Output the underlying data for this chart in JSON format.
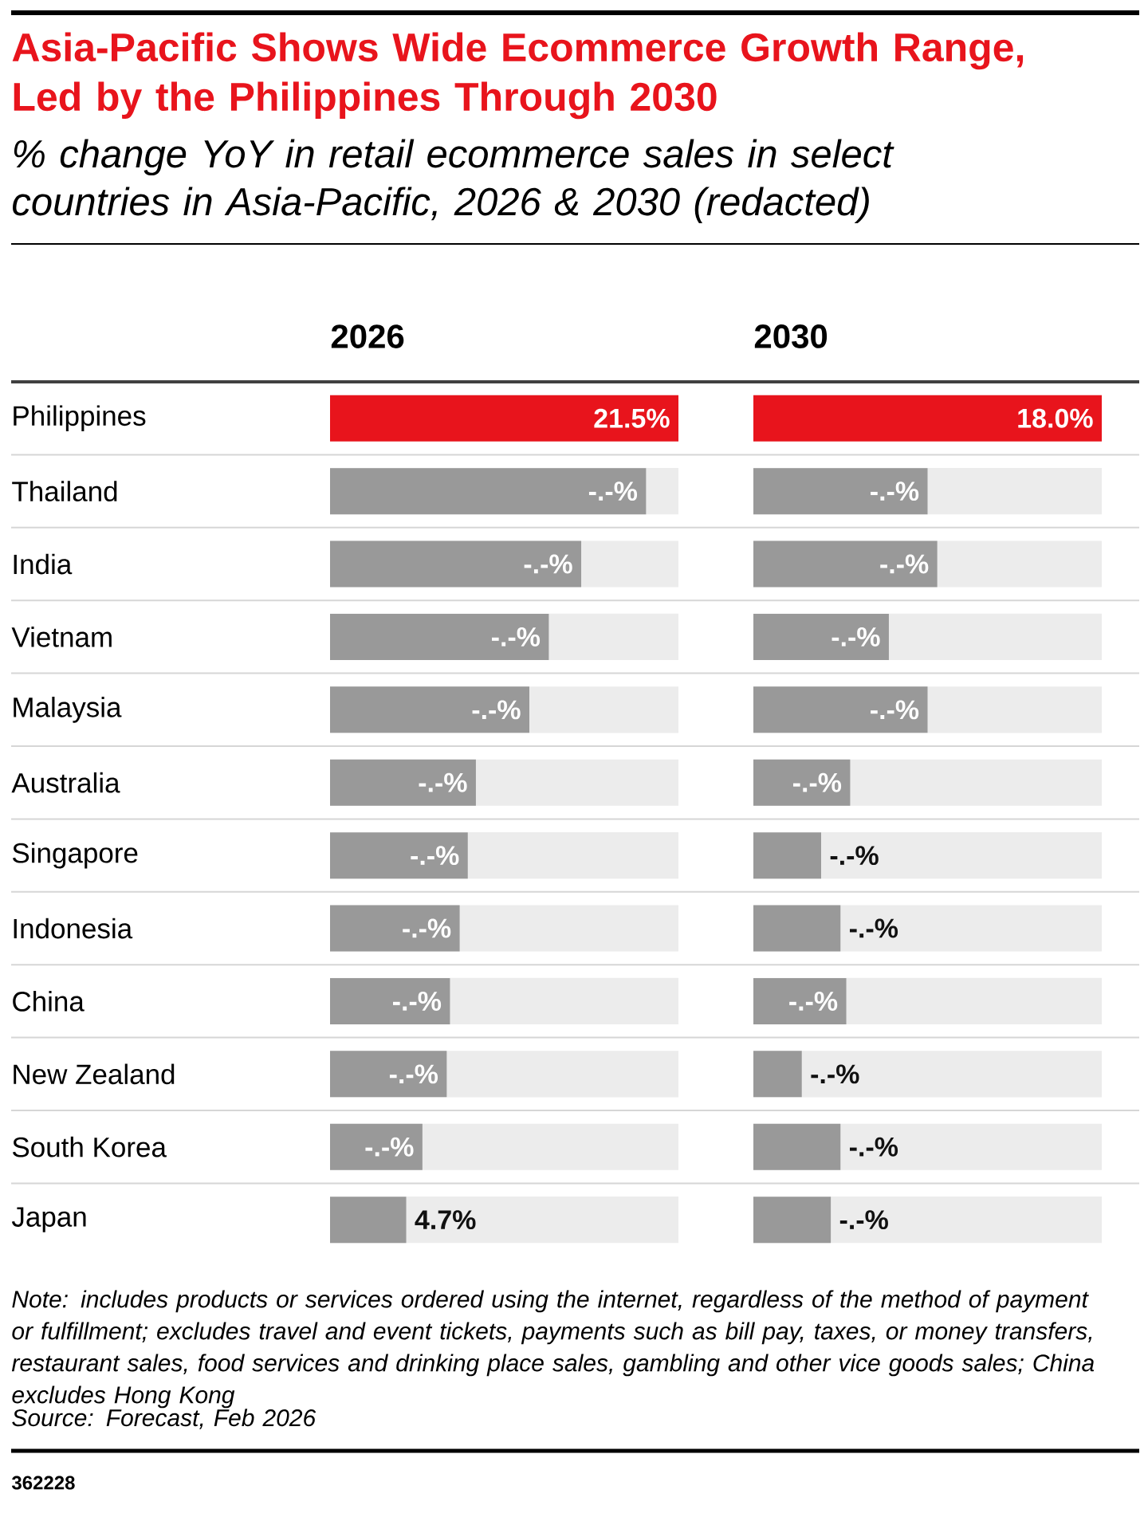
{
  "chart_data": [
    {
      "type": "other",
      "title": "Asia-Pacific Shows Wide Ecommerce Growth Range, Led by the Philippines Through 2030",
      "subtitle": "% change YoY in retail ecommerce sales in select countries in Asia-Pacific, 2026 & 2030 (redacted)",
      "annotations": [
        "Note: includes products or services ordered using the internet, regardless of the method of payment or fulfillment; excludes travel and event tickets, payments such as bill pay, taxes, or money transfers, restaurant sales, food services and drinking place sales, gambling and other vice goods sales; China excludes Hong Kong",
        "Source: Forecast, Feb 2026",
        "362228"
      ]
    },
    {
      "type": "bar",
      "orientation": "horizontal",
      "title": "2026",
      "tick_labels": "y",
      "xlim": [
        0,
        21.5
      ],
      "categories": [
        "Philippines",
        "Thailand",
        "India",
        "Vietnam",
        "Malaysia",
        "Australia",
        "Singapore",
        "Indonesia",
        "China",
        "New Zealand",
        "South Korea",
        "Japan"
      ],
      "values": [
        21.5,
        19.5,
        15.5,
        13.5,
        12.3,
        9.0,
        8.5,
        8.0,
        7.4,
        7.2,
        5.7,
        4.7
      ],
      "colors": [
        "#e8141c",
        "#999999",
        "#999999",
        "#999999",
        "#999999",
        "#999999",
        "#999999",
        "#999999",
        "#999999",
        "#999999",
        "#999999",
        "#999999"
      ],
      "value_labels": [
        "21.5%",
        "-.-%",
        "-.-%",
        "-.-%",
        "-.-%",
        "-.-%",
        "-.-%",
        "-.-%",
        "-.-%",
        "-.-%",
        "-.-%",
        "4.7%"
      ]
    },
    {
      "type": "bar",
      "orientation": "horizontal",
      "title": "2030",
      "tick_labels": false,
      "xlim": [
        0,
        18.0
      ],
      "categories": [
        null,
        null,
        null,
        null,
        null,
        null,
        null,
        null,
        null,
        null,
        null,
        null
      ],
      "values": [
        18.0,
        9.0,
        9.5,
        7.0,
        9.0,
        5.0,
        3.5,
        4.5,
        4.8,
        2.5,
        4.5,
        4.0
      ],
      "colors": [
        "#e8141c",
        "#999999",
        "#999999",
        "#999999",
        "#999999",
        "#999999",
        "#999999",
        "#999999",
        "#999999",
        "#999999",
        "#999999",
        "#999999"
      ],
      "value_labels": [
        "18.0%",
        "-.-%",
        "-.-%",
        "-.-%",
        "-.-%",
        "-.-%",
        "-.-%",
        "-.-%",
        "-.-%",
        "-.-%",
        "-.-%",
        "-.-%"
      ]
    }
  ]
}
